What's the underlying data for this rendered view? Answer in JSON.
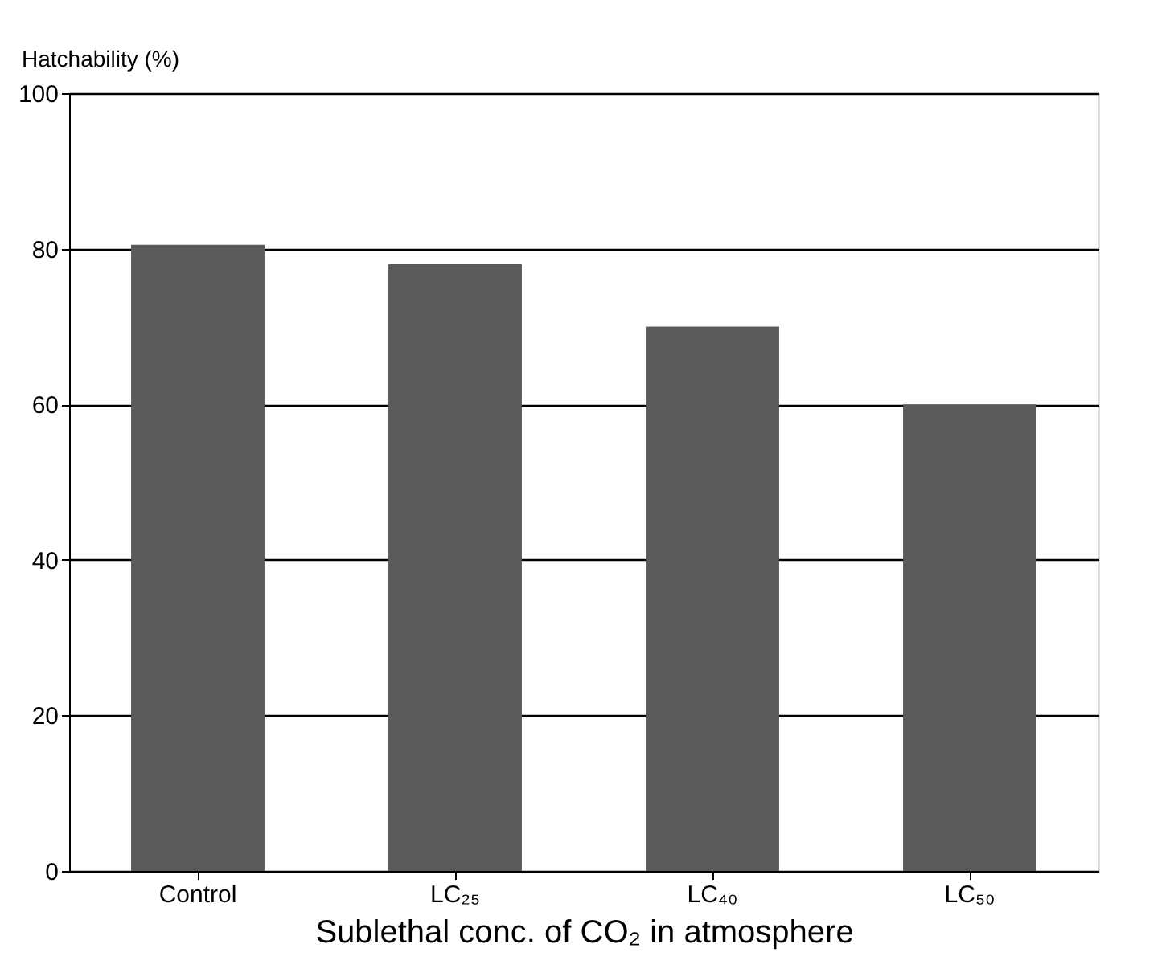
{
  "chart_data": {
    "type": "bar",
    "xlabel": "Sublethal conc. of CO₂ in atmosphere",
    "ylabel": "Hatchability (%)",
    "categories": [
      "Control",
      "LC₂₅",
      "LC₄₀",
      "LC₅₀"
    ],
    "values": [
      80.5,
      78,
      70,
      60
    ],
    "color": "#5a5a5a",
    "ylim": [
      0,
      100
    ],
    "yticks": [
      0,
      20,
      40,
      60,
      80,
      100
    ],
    "grid": "y"
  }
}
